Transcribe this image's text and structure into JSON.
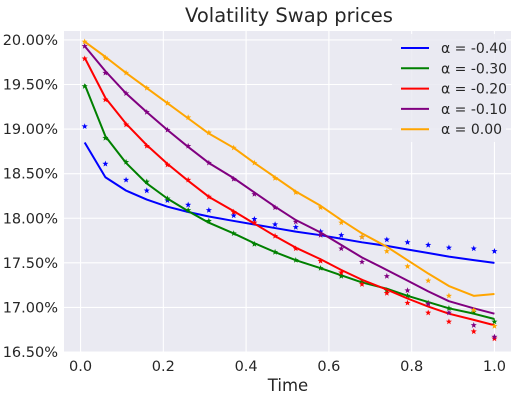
{
  "chart_data": {
    "type": "line",
    "title": "Volatility Swap prices",
    "xlabel": "Time",
    "ylabel": "",
    "xlim": [
      -0.04,
      1.04
    ],
    "ylim": [
      16.5,
      20.1
    ],
    "x_ticks": [
      0.0,
      0.2,
      0.4,
      0.6,
      0.8,
      1.0
    ],
    "x_tick_labels": [
      "0.0",
      "0.2",
      "0.4",
      "0.6",
      "0.8",
      "1.0"
    ],
    "y_ticks": [
      16.5,
      17.0,
      17.5,
      18.0,
      18.5,
      19.0,
      19.5,
      20.0
    ],
    "y_tick_labels": [
      "16.50%",
      "17.00%",
      "17.50%",
      "18.00%",
      "18.50%",
      "19.00%",
      "19.50%",
      "20.00%"
    ],
    "grid": true,
    "legend_position": "top-right",
    "series": [
      {
        "name": "α = -0.40",
        "color": "#0000ff",
        "line": {
          "x": [
            0.01,
            0.06,
            0.11,
            0.16,
            0.21,
            0.26,
            0.31,
            0.37,
            0.42,
            0.47,
            0.52,
            0.58,
            0.63,
            0.68,
            0.74,
            0.79,
            0.84,
            0.89,
            0.95,
            1.0
          ],
          "y": [
            18.85,
            18.46,
            18.31,
            18.21,
            18.13,
            18.07,
            18.02,
            17.97,
            17.93,
            17.89,
            17.85,
            17.81,
            17.77,
            17.73,
            17.69,
            17.65,
            17.61,
            17.57,
            17.53,
            17.5
          ]
        },
        "markers": {
          "x": [
            0.01,
            0.06,
            0.11,
            0.16,
            0.21,
            0.26,
            0.31,
            0.37,
            0.42,
            0.47,
            0.52,
            0.58,
            0.63,
            0.68,
            0.74,
            0.79,
            0.84,
            0.89,
            0.95,
            1.0
          ],
          "y": [
            19.03,
            18.61,
            18.43,
            18.31,
            18.2,
            18.15,
            18.09,
            18.03,
            17.99,
            17.93,
            17.9,
            17.85,
            17.81,
            17.79,
            17.76,
            17.73,
            17.7,
            17.67,
            17.66,
            17.63
          ]
        }
      },
      {
        "name": "α = -0.30",
        "color": "#008000",
        "line": {
          "x": [
            0.01,
            0.06,
            0.11,
            0.16,
            0.21,
            0.26,
            0.31,
            0.37,
            0.42,
            0.47,
            0.52,
            0.58,
            0.63,
            0.68,
            0.74,
            0.79,
            0.84,
            0.89,
            0.95,
            1.0
          ],
          "y": [
            19.5,
            18.92,
            18.62,
            18.39,
            18.22,
            18.08,
            17.95,
            17.83,
            17.72,
            17.62,
            17.53,
            17.44,
            17.36,
            17.28,
            17.21,
            17.13,
            17.06,
            16.99,
            16.93,
            16.87
          ]
        },
        "markers": {
          "x": [
            0.01,
            0.06,
            0.11,
            0.16,
            0.21,
            0.26,
            0.31,
            0.37,
            0.42,
            0.47,
            0.52,
            0.58,
            0.63,
            0.68,
            0.74,
            0.79,
            0.84,
            0.89,
            0.95,
            1.0
          ],
          "y": [
            19.48,
            18.9,
            18.63,
            18.41,
            18.22,
            18.09,
            17.97,
            17.83,
            17.71,
            17.62,
            17.53,
            17.44,
            17.35,
            17.29,
            17.19,
            17.13,
            17.05,
            16.99,
            16.95,
            16.84
          ]
        }
      },
      {
        "name": "α = -0.20",
        "color": "#ff0000",
        "line": {
          "x": [
            0.01,
            0.06,
            0.11,
            0.16,
            0.21,
            0.26,
            0.31,
            0.37,
            0.42,
            0.47,
            0.52,
            0.58,
            0.63,
            0.68,
            0.74,
            0.79,
            0.84,
            0.89,
            0.95,
            1.0
          ],
          "y": [
            19.8,
            19.35,
            19.06,
            18.82,
            18.61,
            18.42,
            18.24,
            18.08,
            17.94,
            17.8,
            17.67,
            17.54,
            17.42,
            17.31,
            17.2,
            17.1,
            17.01,
            16.93,
            16.86,
            16.8
          ]
        },
        "markers": {
          "x": [
            0.01,
            0.06,
            0.11,
            0.16,
            0.21,
            0.26,
            0.31,
            0.37,
            0.42,
            0.47,
            0.52,
            0.58,
            0.63,
            0.68,
            0.74,
            0.79,
            0.84,
            0.89,
            0.95,
            1.0
          ],
          "y": [
            19.79,
            19.33,
            19.05,
            18.81,
            18.6,
            18.43,
            18.24,
            18.07,
            17.95,
            17.8,
            17.66,
            17.52,
            17.39,
            17.26,
            17.16,
            17.05,
            16.94,
            16.84,
            16.73,
            16.65
          ]
        }
      },
      {
        "name": "α = -0.10",
        "color": "#800080",
        "line": {
          "x": [
            0.01,
            0.06,
            0.11,
            0.16,
            0.21,
            0.26,
            0.31,
            0.37,
            0.42,
            0.47,
            0.52,
            0.58,
            0.63,
            0.68,
            0.74,
            0.79,
            0.84,
            0.89,
            0.95,
            1.0
          ],
          "y": [
            19.93,
            19.65,
            19.4,
            19.19,
            18.99,
            18.8,
            18.62,
            18.45,
            18.29,
            18.13,
            17.98,
            17.84,
            17.7,
            17.56,
            17.42,
            17.3,
            17.18,
            17.07,
            16.99,
            16.93
          ]
        },
        "markers": {
          "x": [
            0.01,
            0.06,
            0.11,
            0.16,
            0.21,
            0.26,
            0.31,
            0.37,
            0.42,
            0.47,
            0.52,
            0.58,
            0.63,
            0.68,
            0.74,
            0.79,
            0.84,
            0.89,
            0.95,
            1.0
          ],
          "y": [
            19.93,
            19.63,
            19.4,
            19.19,
            18.99,
            18.81,
            18.62,
            18.44,
            18.27,
            18.12,
            17.96,
            17.81,
            17.66,
            17.51,
            17.35,
            17.19,
            17.04,
            16.94,
            16.8,
            16.67
          ]
        }
      },
      {
        "name": "α = 0.00",
        "color": "#ffa500",
        "line": {
          "x": [
            0.01,
            0.06,
            0.11,
            0.16,
            0.21,
            0.26,
            0.31,
            0.37,
            0.42,
            0.47,
            0.52,
            0.58,
            0.63,
            0.68,
            0.74,
            0.79,
            0.84,
            0.89,
            0.95,
            1.0
          ],
          "y": [
            19.98,
            19.81,
            19.63,
            19.46,
            19.29,
            19.12,
            18.95,
            18.79,
            18.62,
            18.46,
            18.3,
            18.14,
            17.98,
            17.83,
            17.68,
            17.53,
            17.38,
            17.24,
            17.13,
            17.15
          ]
        },
        "markers": {
          "x": [
            0.01,
            0.06,
            0.11,
            0.16,
            0.21,
            0.26,
            0.31,
            0.37,
            0.42,
            0.47,
            0.52,
            0.58,
            0.63,
            0.68,
            0.74,
            0.79,
            0.84,
            0.89,
            0.95,
            1.0
          ],
          "y": [
            19.98,
            19.8,
            19.63,
            19.46,
            19.29,
            19.13,
            18.96,
            18.79,
            18.62,
            18.45,
            18.29,
            18.12,
            17.95,
            17.79,
            17.63,
            17.46,
            17.3,
            17.13,
            16.97,
            16.79
          ]
        }
      }
    ]
  }
}
